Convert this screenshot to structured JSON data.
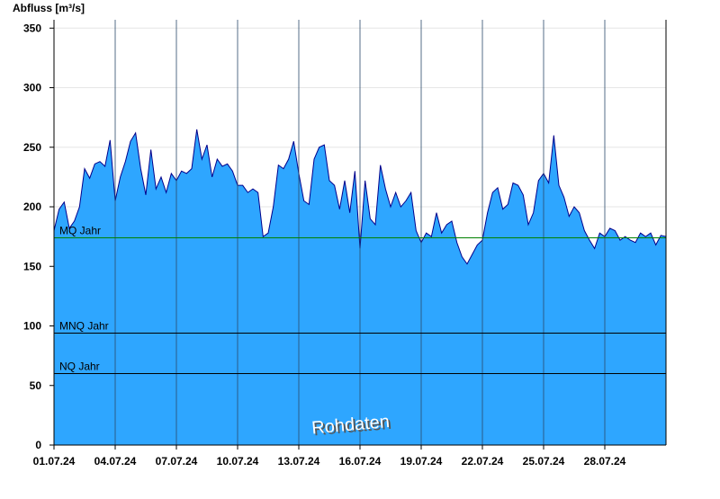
{
  "chart_data": {
    "type": "area",
    "y_label": "Abfluss [m³/s]",
    "annotation": "Rohdaten",
    "color": "#2ea6ff",
    "line_color": "#00008b",
    "xlim": [
      0,
      30
    ],
    "ylim": [
      0,
      357
    ],
    "xticks": [
      {
        "value": 0,
        "label": "01.07.24"
      },
      {
        "value": 3,
        "label": "04.07.24"
      },
      {
        "value": 6,
        "label": "07.07.24"
      },
      {
        "value": 9,
        "label": "10.07.24"
      },
      {
        "value": 12,
        "label": "13.07.24"
      },
      {
        "value": 15,
        "label": "16.07.24"
      },
      {
        "value": 18,
        "label": "19.07.24"
      },
      {
        "value": 21,
        "label": "22.07.24"
      },
      {
        "value": 24,
        "label": "25.07.24"
      },
      {
        "value": 27,
        "label": "28.07.24"
      }
    ],
    "yticks": [
      0,
      50,
      100,
      150,
      200,
      250,
      300,
      350
    ],
    "grid": true,
    "reference_lines": [
      {
        "label": "MQ Jahr",
        "value": 174,
        "color": "#008000"
      },
      {
        "label": "MNQ Jahr",
        "value": 94,
        "color": "#000000"
      },
      {
        "label": "NQ Jahr",
        "value": 60,
        "color": "#000000"
      }
    ],
    "x": [
      0,
      0.25,
      0.5,
      0.75,
      1,
      1.25,
      1.5,
      1.75,
      2,
      2.25,
      2.5,
      2.75,
      3,
      3.25,
      3.5,
      3.75,
      4,
      4.25,
      4.5,
      4.75,
      5,
      5.25,
      5.5,
      5.75,
      6,
      6.25,
      6.5,
      6.75,
      7,
      7.25,
      7.5,
      7.75,
      8,
      8.25,
      8.5,
      8.75,
      9,
      9.25,
      9.5,
      9.75,
      10,
      10.25,
      10.5,
      10.75,
      11,
      11.25,
      11.5,
      11.75,
      12,
      12.25,
      12.5,
      12.75,
      13,
      13.25,
      13.5,
      13.75,
      14,
      14.25,
      14.5,
      14.75,
      15,
      15.25,
      15.5,
      15.75,
      16,
      16.25,
      16.5,
      16.75,
      17,
      17.25,
      17.5,
      17.75,
      18,
      18.25,
      18.5,
      18.75,
      19,
      19.25,
      19.5,
      19.75,
      20,
      20.25,
      20.5,
      20.75,
      21,
      21.25,
      21.5,
      21.75,
      22,
      22.25,
      22.5,
      22.75,
      23,
      23.25,
      23.5,
      23.75,
      24,
      24.25,
      24.5,
      24.75,
      25,
      25.25,
      25.5,
      25.75,
      26,
      26.25,
      26.5,
      26.75,
      27,
      27.25,
      27.5,
      27.75,
      28,
      28.25,
      28.5,
      28.75,
      29,
      29.25,
      29.5,
      29.75,
      30
    ],
    "values": [
      180,
      198,
      204,
      182,
      188,
      200,
      232,
      224,
      236,
      238,
      234,
      256,
      205,
      225,
      238,
      255,
      262,
      232,
      210,
      248,
      215,
      225,
      212,
      228,
      222,
      230,
      228,
      232,
      265,
      240,
      252,
      225,
      240,
      234,
      236,
      230,
      218,
      218,
      212,
      215,
      212,
      175,
      178,
      200,
      235,
      232,
      240,
      255,
      228,
      205,
      202,
      240,
      250,
      252,
      222,
      218,
      198,
      222,
      195,
      230,
      165,
      222,
      190,
      185,
      235,
      215,
      200,
      212,
      200,
      205,
      212,
      180,
      170,
      178,
      175,
      195,
      178,
      185,
      188,
      170,
      158,
      152,
      160,
      168,
      172,
      195,
      212,
      216,
      198,
      202,
      220,
      218,
      210,
      185,
      195,
      222,
      228,
      220,
      260,
      218,
      208,
      192,
      200,
      195,
      180,
      172,
      165,
      178,
      175,
      182,
      180,
      172,
      175,
      172,
      170,
      178,
      175,
      178,
      168,
      176,
      175
    ]
  }
}
